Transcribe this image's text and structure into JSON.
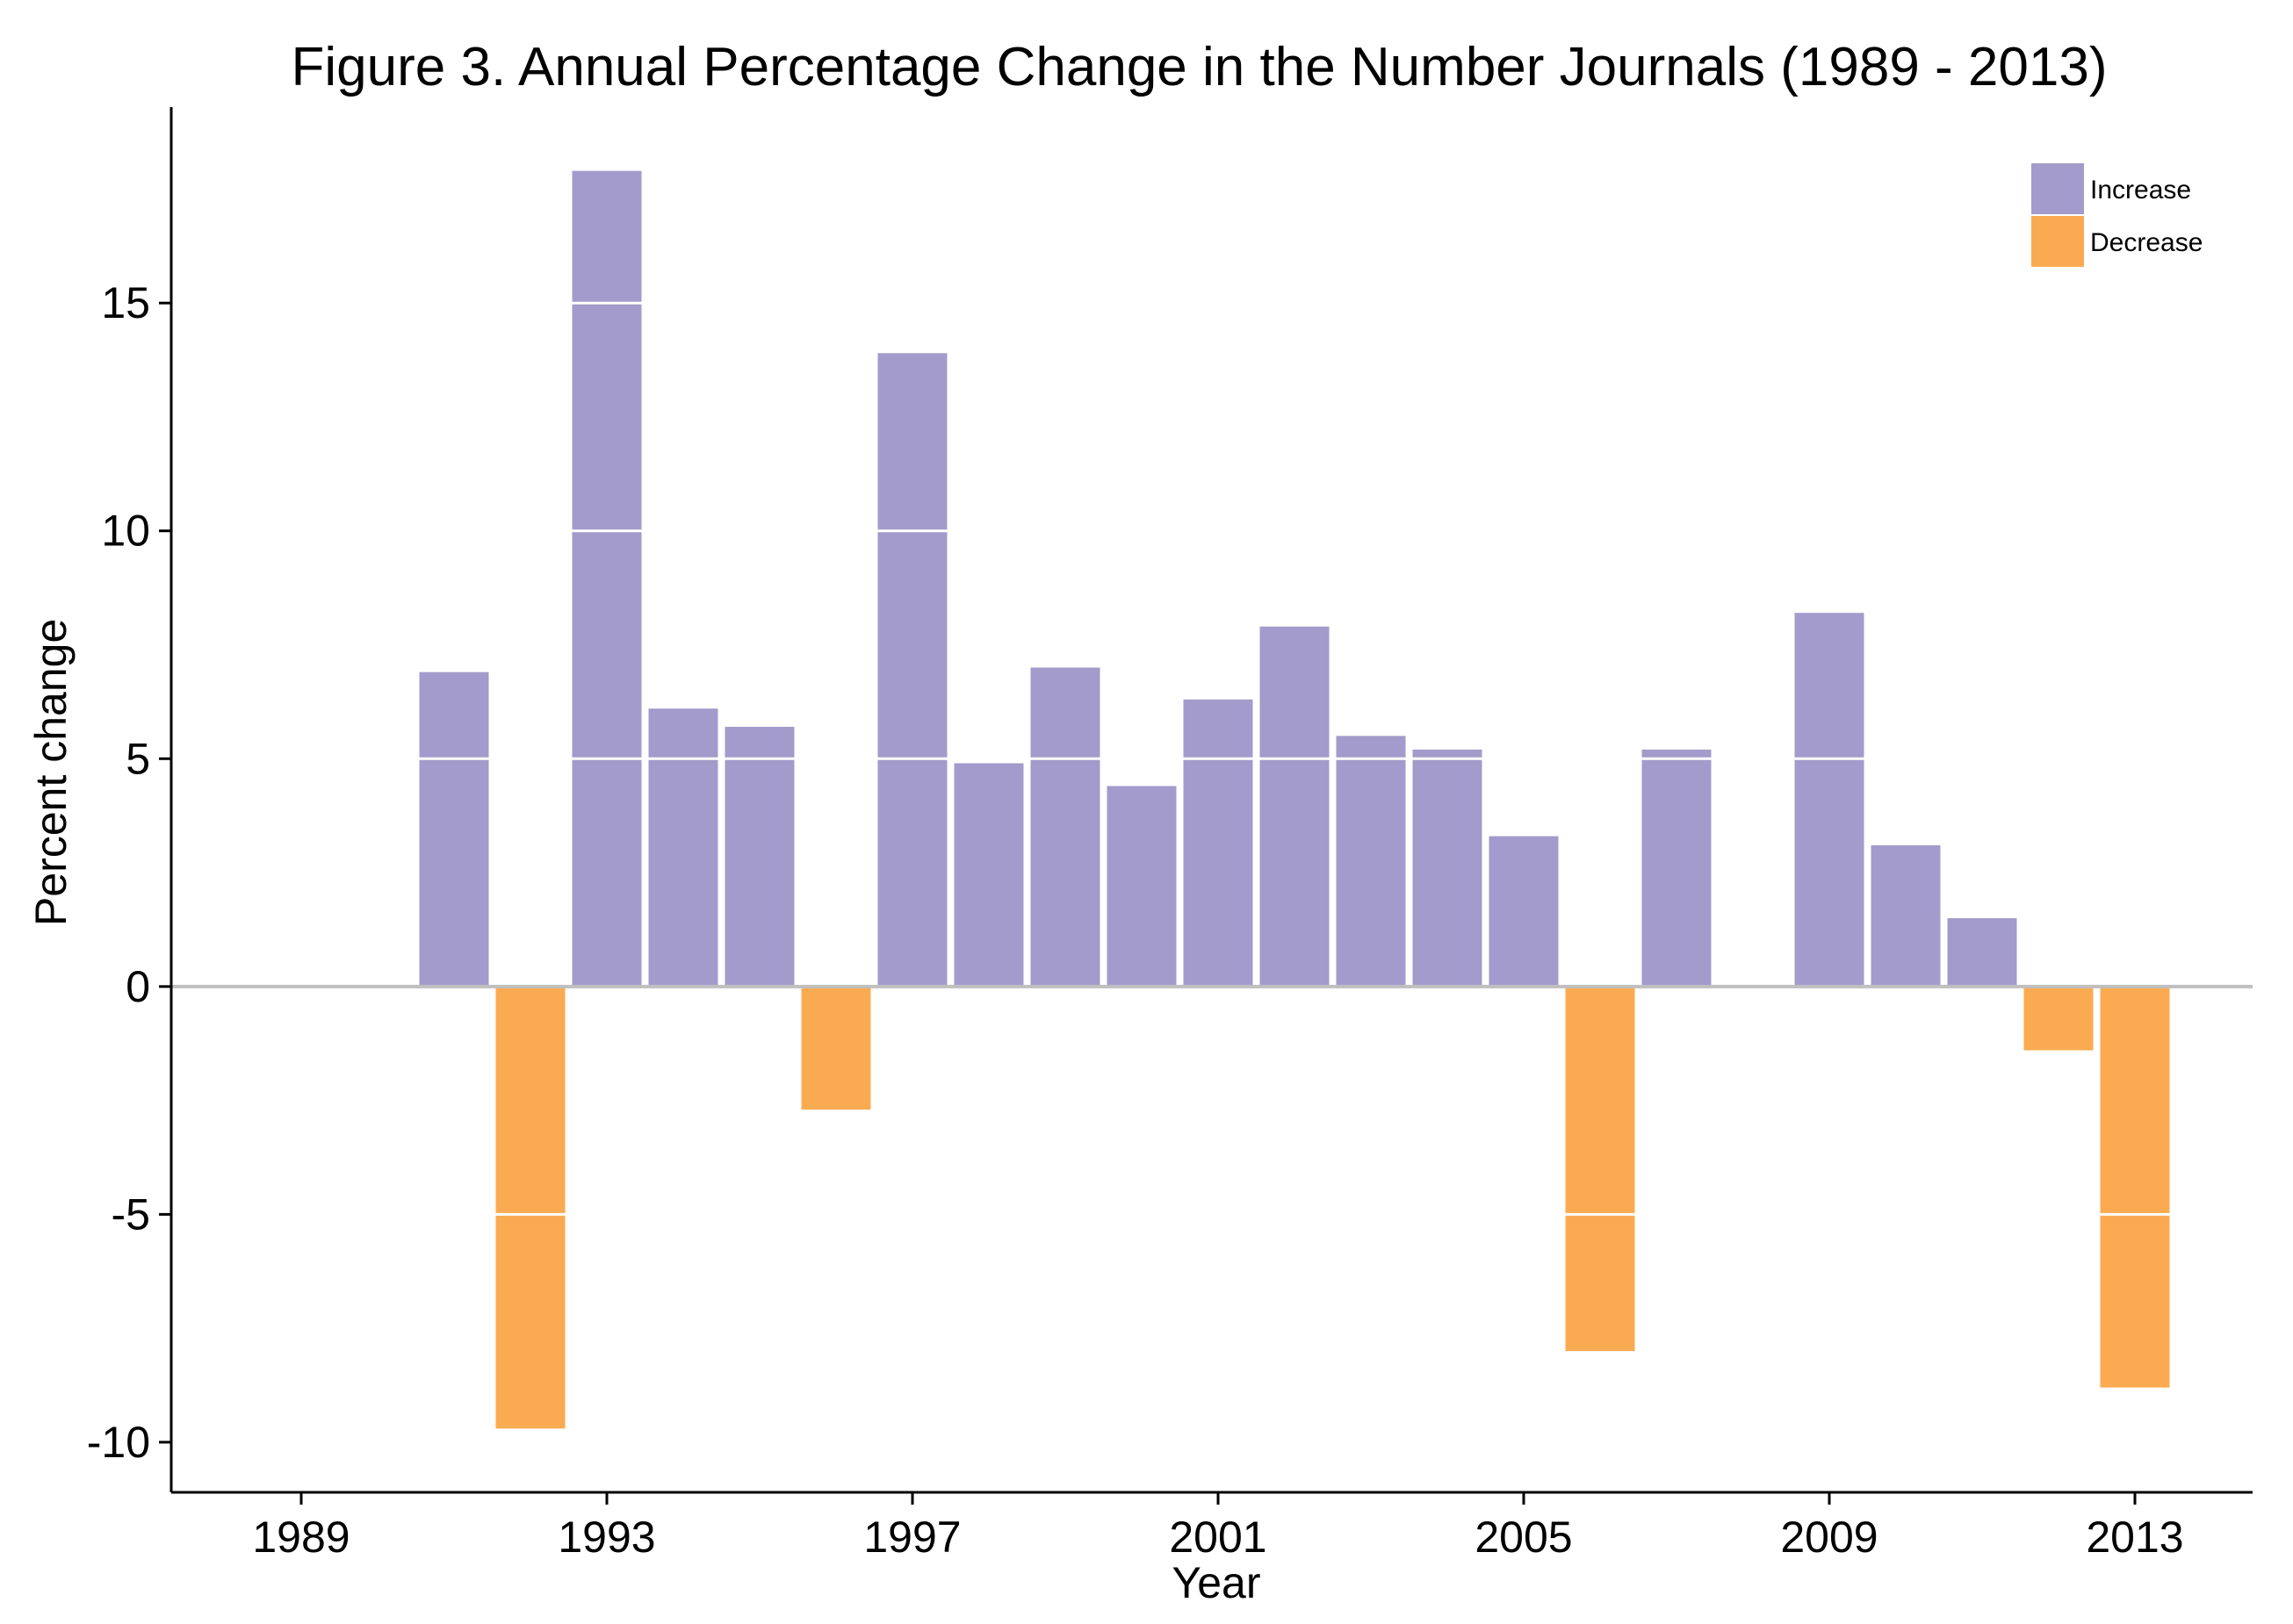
{
  "chart_data": {
    "type": "bar",
    "title": "Figure 3. Annual Percentage Change in the Number Journals (1989 - 2013)",
    "xlabel": "Year",
    "ylabel": "Percent change",
    "categories": [
      1989,
      1990,
      1991,
      1992,
      1993,
      1994,
      1995,
      1996,
      1997,
      1998,
      1999,
      2000,
      2001,
      2002,
      2003,
      2004,
      2005,
      2006,
      2007,
      2008,
      2009,
      2010,
      2011,
      2012,
      2013
    ],
    "values": [
      0,
      0,
      6.9,
      -9.7,
      17.9,
      6.1,
      5.7,
      -2.7,
      13.9,
      4.9,
      7.0,
      4.4,
      6.3,
      7.9,
      5.5,
      5.2,
      3.3,
      -8.0,
      5.2,
      0,
      8.2,
      3.1,
      1.5,
      -1.4,
      -8.8
    ],
    "xticks": [
      "1989",
      "1993",
      "1997",
      "2001",
      "2005",
      "2009",
      "2013"
    ],
    "yticks": [
      "-10",
      "-5",
      "0",
      "5",
      "10",
      "15"
    ],
    "ylim": [
      -11.1,
      19.3
    ],
    "grid": false,
    "legend": {
      "position": "top-right",
      "entries": [
        {
          "label": "Increase",
          "color": "#a39bcb"
        },
        {
          "label": "Decrease",
          "color": "#faab52"
        }
      ]
    },
    "colors": {
      "increase": "#a39bcb",
      "decrease": "#faab52",
      "zero_line": "#bfbfbf",
      "axis": "#000000"
    }
  }
}
